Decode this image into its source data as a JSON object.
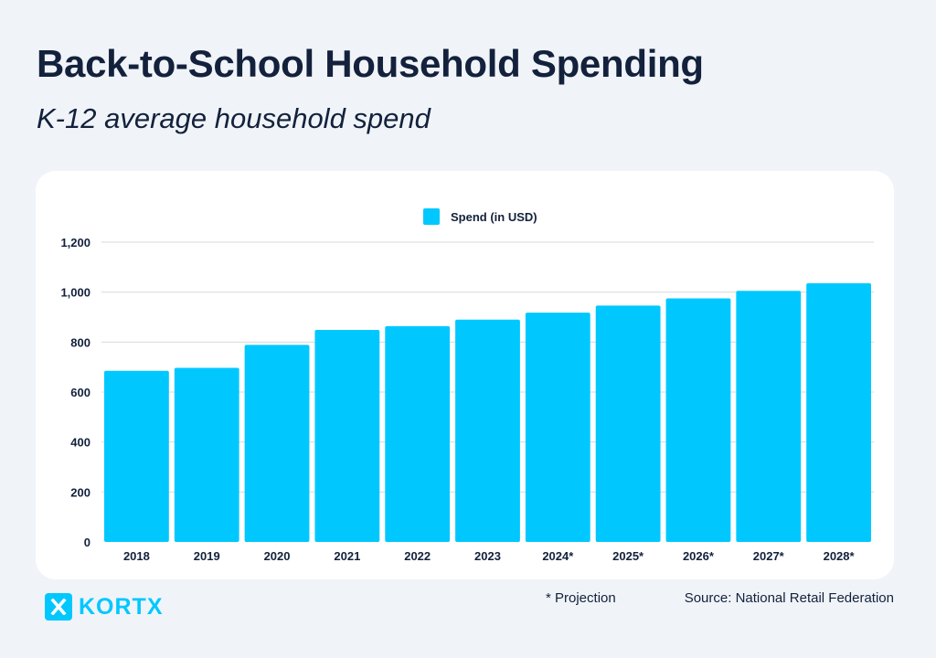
{
  "header": {
    "title": "Back-to-School Household Spending",
    "subtitle": "K-12 average household spend"
  },
  "footer": {
    "projection_note": "* Projection",
    "source": "Source: National Retail Federation",
    "logo_text": "KORTX",
    "logo_icon": "x-logo-icon"
  },
  "colors": {
    "bar": "#00c8ff",
    "grid": "#d9d9d9",
    "text": "#13213c",
    "background": "#f0f4f8",
    "card": "#ffffff"
  },
  "chart_data": {
    "type": "bar",
    "title": "Back-to-School Household Spending",
    "subtitle": "K-12 average household spend",
    "categories": [
      "2018",
      "2019",
      "2020",
      "2021",
      "2022",
      "2023",
      "2024*",
      "2025*",
      "2026*",
      "2027*",
      "2028*"
    ],
    "series": [
      {
        "name": "Spend (in USD)",
        "values": [
          685,
          697,
          789,
          849,
          864,
          890,
          918,
          946,
          975,
          1005,
          1036
        ]
      }
    ],
    "yticks": [
      "0",
      "200",
      "400",
      "600",
      "800",
      "1,000",
      "1,200"
    ],
    "ylim": [
      0,
      1200
    ],
    "grid": true,
    "legend": "top-center"
  }
}
